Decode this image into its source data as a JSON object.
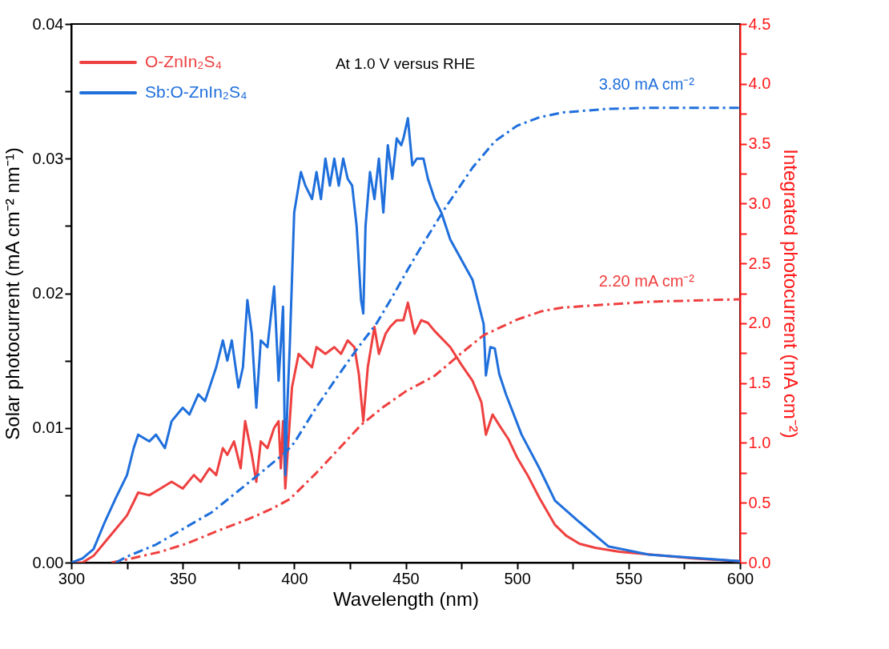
{
  "chart_data": {
    "type": "line",
    "xlabel": "Wavelength (nm)",
    "ylabel": "Solar photocurrent (mA cm⁻² nm⁻¹)",
    "y2label": "Integrated photocurrent (mA cm⁻²)",
    "xlim": [
      300,
      600
    ],
    "xticks": [
      300,
      {
        "value": 325,
        "label": null
      },
      350,
      {
        "value": 375,
        "label": null
      },
      400,
      {
        "value": 425,
        "label": null
      },
      450,
      {
        "value": 475,
        "label": null
      },
      500,
      {
        "value": 525,
        "label": null
      },
      550,
      {
        "value": 575,
        "label": null
      },
      600
    ],
    "ylim": [
      0,
      0.04
    ],
    "yticks": [
      {
        "value": 0,
        "label": "0.00"
      },
      {
        "value": 0.005,
        "label": null
      },
      0.01,
      {
        "value": 0.015,
        "label": null
      },
      0.02,
      {
        "value": 0.025,
        "label": null
      },
      0.03,
      {
        "value": 0.035,
        "label": null
      },
      0.04
    ],
    "y2lim": [
      0,
      4.5
    ],
    "y2ticks": [
      {
        "value": 0,
        "label": "0.0"
      },
      {
        "value": 0.25,
        "label": null
      },
      0.5,
      {
        "value": 0.75,
        "label": null
      },
      {
        "value": 1,
        "label": "1.0"
      },
      {
        "value": 1.25,
        "label": null
      },
      1.5,
      {
        "value": 1.75,
        "label": null
      },
      {
        "value": 2,
        "label": "2.0"
      },
      {
        "value": 2.25,
        "label": null
      },
      2.5,
      {
        "value": 2.75,
        "label": null
      },
      {
        "value": 3,
        "label": "3.0"
      },
      {
        "value": 3.25,
        "label": null
      },
      3.5,
      {
        "value": 3.75,
        "label": null
      },
      {
        "value": 4,
        "label": "4.0"
      },
      {
        "value": 4.25,
        "label": null
      },
      4.5
    ],
    "grid": false,
    "legend": "top left",
    "annotations": [
      "At 1.0 V versus RHE",
      "3.80 mA cm⁻²",
      "2.20 mA cm⁻²"
    ],
    "series": [
      {
        "name": "O-ZnIn₂S₄",
        "color": "#ef4040",
        "line_style": "solid",
        "x": [
          300,
          305,
          310,
          315,
          320,
          325,
          328,
          330,
          335,
          340,
          345,
          350,
          355,
          358,
          362,
          365,
          368,
          370,
          373,
          376,
          378,
          381,
          383,
          385,
          388,
          391,
          393,
          394,
          395,
          396,
          397,
          399,
          402,
          405,
          408,
          410,
          414,
          418,
          421,
          424,
          427,
          429,
          431,
          433,
          436,
          438,
          441,
          443,
          446,
          449,
          451,
          454,
          457,
          460,
          463,
          470,
          475,
          480,
          484,
          486,
          489,
          492,
          496,
          500,
          505,
          510,
          517,
          522,
          528,
          535,
          546,
          560,
          580,
          600
        ],
        "values": [
          0,
          0,
          0.0005,
          0.0015,
          0.0025,
          0.0035,
          0.0045,
          0.0052,
          0.005,
          0.0055,
          0.006,
          0.0055,
          0.0065,
          0.006,
          0.007,
          0.0065,
          0.0085,
          0.008,
          0.009,
          0.007,
          0.0105,
          0.008,
          0.006,
          0.009,
          0.0085,
          0.01,
          0.0105,
          0.007,
          0.0105,
          0.0055,
          0.008,
          0.013,
          0.0155,
          0.015,
          0.0145,
          0.016,
          0.0155,
          0.016,
          0.0155,
          0.0165,
          0.016,
          0.014,
          0.0105,
          0.0145,
          0.0175,
          0.0155,
          0.017,
          0.0175,
          0.018,
          0.018,
          0.0193,
          0.017,
          0.018,
          0.0178,
          0.0172,
          0.016,
          0.0147,
          0.0135,
          0.0119,
          0.0095,
          0.011,
          0.0102,
          0.0092,
          0.0078,
          0.0064,
          0.0048,
          0.0028,
          0.002,
          0.0014,
          0.0011,
          0.0008,
          0.0006,
          0.0003,
          0.0001
        ]
      },
      {
        "name": "Sb:O-ZnIn₂S₄",
        "color": "#1f6fdc",
        "line_style": "solid",
        "x": [
          300,
          305,
          310,
          315,
          320,
          325,
          328,
          330,
          335,
          338,
          342,
          345,
          350,
          353,
          357,
          360,
          365,
          368,
          370,
          372,
          375,
          377,
          379,
          381,
          383,
          385,
          388,
          391,
          393,
          395,
          396,
          397,
          398,
          400,
          403,
          405,
          408,
          410,
          412,
          414,
          416,
          418,
          420,
          422,
          424,
          426,
          428,
          430,
          431,
          432,
          434,
          436,
          438,
          440,
          442,
          444,
          446,
          448,
          449,
          451,
          453,
          455,
          458,
          460,
          463,
          466,
          470,
          475,
          480,
          485,
          486,
          488,
          490,
          492,
          495,
          502,
          510,
          517,
          528,
          541,
          559,
          575,
          600
        ],
        "values": [
          0,
          0.0003,
          0.001,
          0.003,
          0.0048,
          0.0065,
          0.0085,
          0.0095,
          0.009,
          0.0095,
          0.0085,
          0.0105,
          0.0115,
          0.011,
          0.0125,
          0.012,
          0.0145,
          0.0165,
          0.015,
          0.0165,
          0.013,
          0.0145,
          0.0195,
          0.017,
          0.0115,
          0.0165,
          0.016,
          0.0205,
          0.0135,
          0.019,
          0.0065,
          0.012,
          0.016,
          0.026,
          0.029,
          0.028,
          0.027,
          0.029,
          0.027,
          0.03,
          0.028,
          0.03,
          0.028,
          0.03,
          0.0285,
          0.028,
          0.025,
          0.0195,
          0.0185,
          0.025,
          0.029,
          0.027,
          0.03,
          0.026,
          0.031,
          0.0285,
          0.0315,
          0.031,
          0.0315,
          0.033,
          0.0295,
          0.03,
          0.03,
          0.0285,
          0.027,
          0.026,
          0.024,
          0.0225,
          0.021,
          0.0177,
          0.0139,
          0.016,
          0.0159,
          0.014,
          0.0125,
          0.0095,
          0.007,
          0.0046,
          0.003,
          0.0012,
          0.0006,
          0.0004,
          0.0001
        ]
      },
      {
        "axis": "y2",
        "color": "#ef4040",
        "line_style": "dashdot",
        "x": [
          318,
          326,
          340,
          352,
          365,
          379,
          390,
          398,
          410,
          420,
          430,
          440,
          450,
          463,
          475,
          485,
          500,
          511,
          520,
          535,
          560,
          600
        ],
        "values": [
          0,
          0.03,
          0.09,
          0.16,
          0.26,
          0.36,
          0.45,
          0.53,
          0.75,
          0.95,
          1.15,
          1.3,
          1.43,
          1.56,
          1.75,
          1.9,
          2.03,
          2.1,
          2.13,
          2.15,
          2.18,
          2.2
        ]
      },
      {
        "axis": "y2",
        "color": "#1f6fdc",
        "line_style": "dashdot",
        "x": [
          320,
          325,
          338,
          350,
          363,
          375,
          385,
          396,
          400,
          410,
          420,
          428,
          437,
          444,
          451,
          458,
          468,
          480,
          490,
          500,
          510,
          520,
          540,
          560,
          600
        ],
        "values": [
          0,
          0.05,
          0.15,
          0.28,
          0.42,
          0.6,
          0.75,
          0.92,
          1.0,
          1.3,
          1.57,
          1.78,
          2.0,
          2.22,
          2.45,
          2.67,
          2.97,
          3.3,
          3.52,
          3.65,
          3.72,
          3.76,
          3.79,
          3.8,
          3.8
        ]
      }
    ]
  }
}
